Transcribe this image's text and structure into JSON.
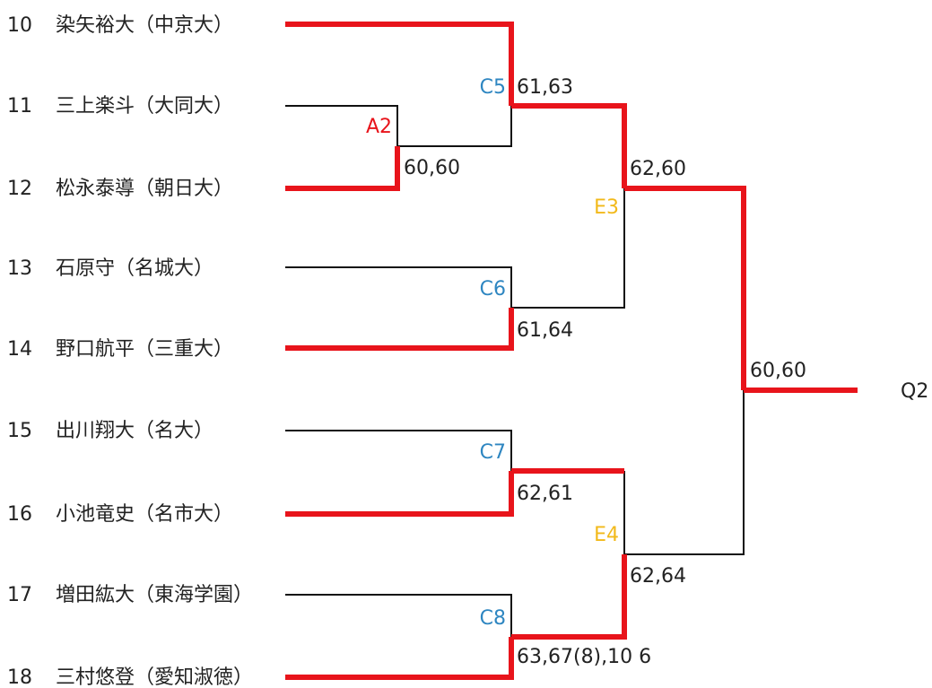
{
  "players": [
    {
      "seed": "10",
      "name": "染矢裕大（中京大）"
    },
    {
      "seed": "11",
      "name": "三上楽斗（大同大）"
    },
    {
      "seed": "12",
      "name": "松永泰導（朝日大）"
    },
    {
      "seed": "13",
      "name": "石原守（名城大）"
    },
    {
      "seed": "14",
      "name": "野口航平（三重大）"
    },
    {
      "seed": "15",
      "name": "出川翔大（名大）"
    },
    {
      "seed": "16",
      "name": "小池竜史（名市大）"
    },
    {
      "seed": "17",
      "name": "増田紘大（東海学園）"
    },
    {
      "seed": "18",
      "name": "三村悠登（愛知淑徳）"
    }
  ],
  "match_codes": {
    "a2": "A2",
    "c5": "C5",
    "c6": "C6",
    "c7": "C7",
    "c8": "C8",
    "e3": "E3",
    "e4": "E4"
  },
  "scores": {
    "a2": "60,60",
    "c5": "61,63",
    "c6": "61,64",
    "c7": "62,61",
    "c8": "63,67(8),10 6",
    "e3": "62,60",
    "e4": "62,64",
    "final": "60,60"
  },
  "qualifier": "Q2",
  "colors": {
    "winner_line": "#E8141B",
    "loser_line": "#111111",
    "code_blue": "#2E86C1",
    "code_red": "#E8141B",
    "code_gold": "#F2B91A"
  }
}
